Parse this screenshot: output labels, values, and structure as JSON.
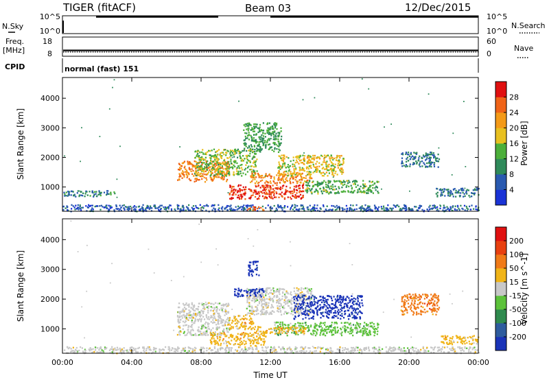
{
  "header": {
    "station": "TIGER (fitACF)",
    "beam": "Beam 03",
    "date": "12/Dec/2015"
  },
  "strip": {
    "nsky_label": "N.Sky",
    "nsky_ticks": [
      "10^5",
      "10^0"
    ],
    "nsearch_label": "N.Search",
    "nsearch_ticks": [
      "10^5",
      "10^0"
    ],
    "freq_label": "Freq.",
    "freq_unit": "[MHz]",
    "freq_ticks": [
      "18",
      "8"
    ],
    "nave_label": "Nave",
    "nave_ticks": [
      "60",
      "0"
    ],
    "cpid_label": "CPID",
    "cpid_value": "normal (fast) 151"
  },
  "colors": {
    "frame": "#000000",
    "background": "#ffffff",
    "low_range_grey": "#9a9a9a"
  },
  "chart_data": [
    {
      "type": "heatmap",
      "name": "power",
      "ylabel": "Slant Range [km]",
      "xlabel": "",
      "x_ticks": [
        "00:00",
        "04:00",
        "08:00",
        "12:00",
        "16:00",
        "20:00",
        "00:00"
      ],
      "xlim_hours": [
        0,
        24
      ],
      "ylim_km": [
        180,
        4700
      ],
      "y_ticks": [
        1000,
        2000,
        3000,
        4000
      ],
      "colorbar": {
        "label": "Power [dB]",
        "ticks": [
          4,
          8,
          12,
          16,
          20,
          24,
          28
        ],
        "range": [
          0,
          32
        ],
        "colors": [
          "#1a33d6",
          "#2a5ab0",
          "#2f8a5a",
          "#4caf3a",
          "#e8c020",
          "#f49a18",
          "#f06418",
          "#e01010"
        ]
      },
      "regions": [
        {
          "t": [
            0,
            24
          ],
          "r": [
            200,
            420
          ],
          "v": 6
        },
        {
          "t": [
            0,
            3
          ],
          "r": [
            700,
            900
          ],
          "v": 9
        },
        {
          "t": [
            6.6,
            9.6
          ],
          "r": [
            1200,
            1900
          ],
          "v": 24
        },
        {
          "t": [
            7.6,
            11.2
          ],
          "r": [
            1400,
            2300
          ],
          "v": 15
        },
        {
          "t": [
            9.6,
            13.9
          ],
          "r": [
            620,
            1100
          ],
          "v": 29
        },
        {
          "t": [
            10.8,
            14.4
          ],
          "r": [
            1150,
            1500
          ],
          "v": 23
        },
        {
          "t": [
            12.4,
            16.2
          ],
          "r": [
            1400,
            2100
          ],
          "v": 18
        },
        {
          "t": [
            14,
            18.2
          ],
          "r": [
            800,
            1250
          ],
          "v": 13
        },
        {
          "t": [
            10.4,
            12.6
          ],
          "r": [
            2200,
            3200
          ],
          "v": 12
        },
        {
          "t": [
            10.5,
            11.6
          ],
          "r": [
            230,
            360
          ],
          "v": 27
        },
        {
          "t": [
            19.5,
            21.7
          ],
          "r": [
            1700,
            2200
          ],
          "v": 8
        },
        {
          "t": [
            21.5,
            24
          ],
          "r": [
            700,
            1000
          ],
          "v": 8
        }
      ]
    },
    {
      "type": "heatmap",
      "name": "velocity",
      "ylabel": "Slant Range [km]",
      "xlabel": "Time UT",
      "x_ticks": [
        "00:00",
        "04:00",
        "08:00",
        "12:00",
        "16:00",
        "20:00",
        "00:00"
      ],
      "xlim_hours": [
        0,
        24
      ],
      "ylim_km": [
        180,
        4700
      ],
      "y_ticks": [
        1000,
        2000,
        3000,
        4000
      ],
      "colorbar": {
        "label": "Velocity [m s^-1]",
        "ticks": [
          "200",
          "100",
          "50",
          "15",
          "-15",
          "-50",
          "-100",
          "-200"
        ],
        "colors": [
          "#1a33b8",
          "#2e5c9e",
          "#2f8a4e",
          "#5cc23a",
          "#c8c8c8",
          "#f0b418",
          "#f07a18",
          "#e84010",
          "#e01010"
        ]
      },
      "regions": [
        {
          "t": [
            0,
            24
          ],
          "r": [
            200,
            420
          ],
          "v": 4
        },
        {
          "t": [
            6.6,
            9.6
          ],
          "r": [
            800,
            1900
          ],
          "v": 4
        },
        {
          "t": [
            8.5,
            11.7
          ],
          "r": [
            450,
            900
          ],
          "v": 5
        },
        {
          "t": [
            9.6,
            11
          ],
          "r": [
            1000,
            1500
          ],
          "v": 5
        },
        {
          "t": [
            10.6,
            14.4
          ],
          "r": [
            1500,
            2400
          ],
          "v": 4
        },
        {
          "t": [
            9.9,
            11.6
          ],
          "r": [
            2100,
            2400
          ],
          "v": 0
        },
        {
          "t": [
            13.3,
            17.3
          ],
          "r": [
            1350,
            2150
          ],
          "v": 0
        },
        {
          "t": [
            12.2,
            18.2
          ],
          "r": [
            800,
            1250
          ],
          "v": 3
        },
        {
          "t": [
            11,
            14
          ],
          "r": [
            850,
            1100
          ],
          "v": 5
        },
        {
          "t": [
            10.7,
            11.3
          ],
          "r": [
            2800,
            3300
          ],
          "v": 0
        },
        {
          "t": [
            19.5,
            21.7
          ],
          "r": [
            1500,
            2200
          ],
          "v": 6
        },
        {
          "t": [
            21.8,
            24
          ],
          "r": [
            500,
            800
          ],
          "v": 5
        }
      ]
    }
  ]
}
